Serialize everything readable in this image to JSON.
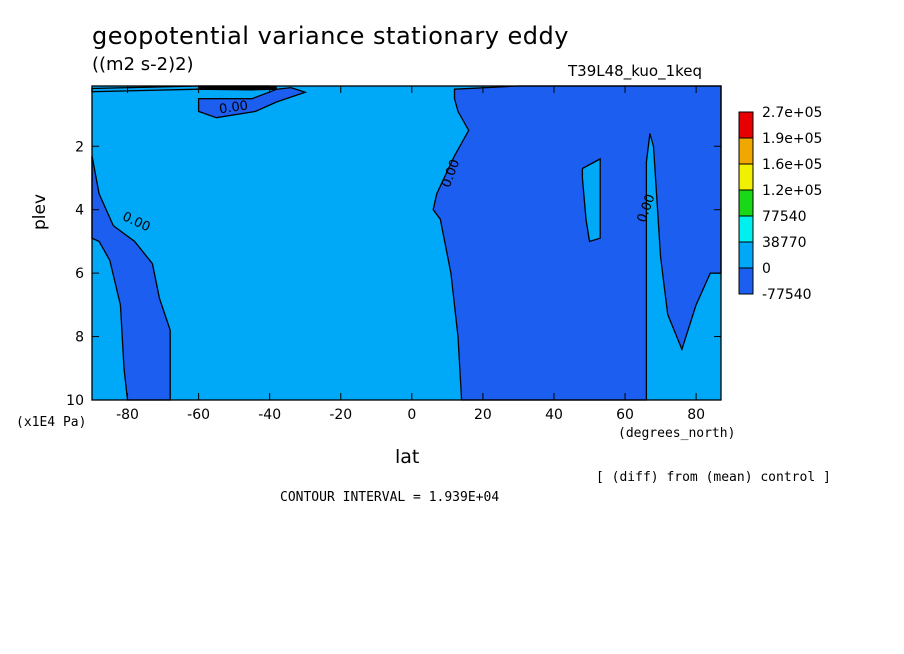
{
  "header": {
    "title": "geopotential variance stationary eddy",
    "units": "((m2 s-2)2)",
    "run": "T39L48_kuo_1keq"
  },
  "footer": {
    "diff_note": "[ (diff) from (mean) control ]",
    "contour_interval": "CONTOUR INTERVAL = 1.939E+04"
  },
  "colors": {
    "fill_neg": "#1c5ff0",
    "fill_zero": "#00a8f8",
    "legend": [
      "#1c5ff0",
      "#00a8f8",
      "#00f0f0",
      "#18d818",
      "#f0f000",
      "#f0a800",
      "#e80000"
    ]
  },
  "chart_data": {
    "type": "contour",
    "xlabel": "lat",
    "xunits": "(degrees_north)",
    "ylabel": "plev",
    "yunits": "(x1E4 Pa)",
    "xlim": [
      -90,
      87
    ],
    "ylim": [
      0.1,
      10
    ],
    "y_inverted": true,
    "x_ticks": [
      -80,
      -60,
      -40,
      -20,
      0,
      20,
      40,
      60,
      80
    ],
    "y_ticks": [
      2,
      4,
      6,
      8,
      10
    ],
    "contour_labels": [
      {
        "text": "0.00",
        "x": -50,
        "y": 0.9
      },
      {
        "text": "0.00",
        "x": -78,
        "y": 4.5
      },
      {
        "text": "0.00",
        "x": 12,
        "y": 2.9
      },
      {
        "text": "0.00",
        "x": 67,
        "y": 4.0
      }
    ],
    "regions": [
      {
        "level": "-77540",
        "outline": [
          [
            -90,
            2.3
          ],
          [
            -88,
            3.5
          ],
          [
            -84,
            4.5
          ],
          [
            -78,
            5.0
          ],
          [
            -73,
            5.7
          ],
          [
            -71,
            6.8
          ],
          [
            -68,
            7.8
          ],
          [
            -68,
            10
          ],
          [
            -80,
            10
          ],
          [
            -81,
            9
          ],
          [
            -82,
            7
          ],
          [
            -85,
            5.6
          ],
          [
            -88,
            5.0
          ],
          [
            -90,
            4.9
          ]
        ]
      },
      {
        "level": "-77540",
        "outline": [
          [
            -60,
            0.5
          ],
          [
            -45,
            0.5
          ],
          [
            -38,
            0.2
          ],
          [
            -34,
            0.15
          ],
          [
            -30,
            0.3
          ],
          [
            -38,
            0.6
          ],
          [
            -44,
            0.9
          ],
          [
            -55,
            1.1
          ],
          [
            -60,
            0.9
          ]
        ]
      },
      {
        "level": "-77540",
        "outline": [
          [
            12,
            0.2
          ],
          [
            30,
            0.1
          ],
          [
            87,
            0.1
          ],
          [
            87,
            6.0
          ],
          [
            84,
            6.0
          ],
          [
            80,
            7.0
          ],
          [
            76,
            8.4
          ],
          [
            72,
            7.3
          ],
          [
            70,
            5.5
          ],
          [
            68,
            2.0
          ],
          [
            67,
            1.6
          ],
          [
            66,
            2.5
          ],
          [
            66,
            10
          ],
          [
            14,
            10
          ],
          [
            13,
            8
          ],
          [
            11,
            6
          ],
          [
            8,
            4.3
          ],
          [
            6,
            4.0
          ],
          [
            7,
            3.5
          ],
          [
            12,
            2.3
          ],
          [
            16,
            1.5
          ],
          [
            13,
            0.9
          ],
          [
            12,
            0.5
          ]
        ]
      },
      {
        "level": "0",
        "outline": [
          [
            48,
            2.7
          ],
          [
            53,
            2.4
          ],
          [
            53,
            4.9
          ],
          [
            50,
            5.0
          ],
          [
            49,
            4.3
          ],
          [
            48,
            3.0
          ]
        ]
      },
      {
        "level": "0",
        "outline": [
          [
            -90,
            0.18
          ],
          [
            -60,
            0.1
          ],
          [
            -40,
            0.1
          ],
          [
            -38,
            0.2
          ],
          [
            -45,
            0.22
          ],
          [
            -60,
            0.2
          ],
          [
            -90,
            0.28
          ]
        ]
      }
    ],
    "legend": [
      "2.7e+05",
      "1.9e+05",
      "1.6e+05",
      "1.2e+05",
      "77540",
      "38770",
      "0",
      "-77540"
    ]
  }
}
